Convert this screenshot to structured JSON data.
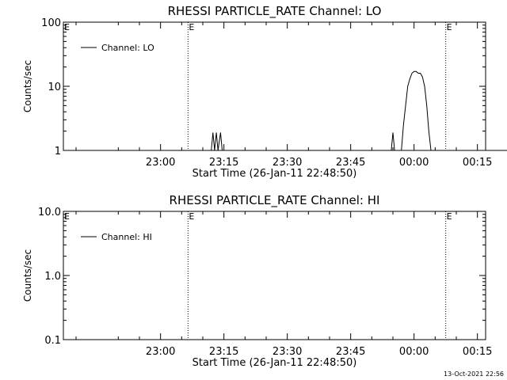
{
  "footer_date": "13-Oct-2021 22:56",
  "chart_data": [
    {
      "type": "line",
      "title": "RHESSI PARTICLE_RATE Channel: LO",
      "xlabel": "Start Time (26-Jan-11 22:48:50)",
      "ylabel": "Counts/sec",
      "yscale": "log",
      "ylim": [
        1,
        100
      ],
      "xlim_minutes": [
        -23,
        43
      ],
      "x_ticks": [
        {
          "minutes": 0,
          "label": "23:00"
        },
        {
          "minutes": 15,
          "label": "23:15"
        },
        {
          "minutes": 30,
          "label": "23:30"
        },
        {
          "minutes": 45,
          "label": "23:45"
        },
        {
          "minutes": 60,
          "label": "00:00"
        },
        {
          "minutes": 75,
          "label": "00:15"
        }
      ],
      "y_ticks": [
        {
          "value": 1,
          "label": "1"
        },
        {
          "value": 10,
          "label": "10"
        },
        {
          "value": 100,
          "label": "100"
        }
      ],
      "legend": {
        "label": "Channel: LO",
        "placement": "top-left"
      },
      "markers": [
        {
          "minutes": 6.5,
          "label": "E"
        },
        {
          "minutes": 67.5,
          "label": "E"
        },
        {
          "minutes": 84.5,
          "label": ""
        }
      ],
      "series": [
        {
          "name": "Channel: LO",
          "points": [
            [
              -22,
              1
            ],
            [
              12,
              1
            ],
            [
              12.4,
              1.9
            ],
            [
              12.8,
              1
            ],
            [
              13.2,
              1.9
            ],
            [
              13.6,
              1
            ],
            [
              14.2,
              1.9
            ],
            [
              14.6,
              1
            ],
            [
              54.6,
              1
            ],
            [
              55,
              1.9
            ],
            [
              55.4,
              1
            ],
            [
              57,
              1
            ],
            [
              57.5,
              2.5
            ],
            [
              58,
              5
            ],
            [
              58.5,
              10
            ],
            [
              59,
              13
            ],
            [
              59.5,
              16
            ],
            [
              60,
              17
            ],
            [
              60.5,
              17
            ],
            [
              61,
              16
            ],
            [
              61.5,
              16
            ],
            [
              62,
              14
            ],
            [
              62.5,
              10
            ],
            [
              63,
              5
            ],
            [
              63.5,
              2
            ],
            [
              64,
              1
            ],
            [
              82,
              1
            ]
          ]
        }
      ]
    },
    {
      "type": "line",
      "title": "RHESSI PARTICLE_RATE Channel: HI",
      "xlabel": "Start Time (26-Jan-11 22:48:50)",
      "ylabel": "Counts/sec",
      "yscale": "log",
      "ylim": [
        0.1,
        10
      ],
      "xlim_minutes": [
        -23,
        43
      ],
      "x_ticks": [
        {
          "minutes": 0,
          "label": "23:00"
        },
        {
          "minutes": 15,
          "label": "23:15"
        },
        {
          "minutes": 30,
          "label": "23:30"
        },
        {
          "minutes": 45,
          "label": "23:45"
        },
        {
          "minutes": 60,
          "label": "00:00"
        },
        {
          "minutes": 75,
          "label": "00:15"
        }
      ],
      "y_ticks": [
        {
          "value": 0.1,
          "label": "0.1"
        },
        {
          "value": 1,
          "label": "1.0"
        },
        {
          "value": 10,
          "label": "10.0"
        }
      ],
      "legend": {
        "label": "Channel: HI",
        "placement": "top-left"
      },
      "markers": [
        {
          "minutes": 6.5,
          "label": "E"
        },
        {
          "minutes": 67.5,
          "label": "E"
        },
        {
          "minutes": 84.5,
          "label": ""
        }
      ],
      "series": [
        {
          "name": "Channel: HI",
          "points": []
        }
      ]
    }
  ]
}
